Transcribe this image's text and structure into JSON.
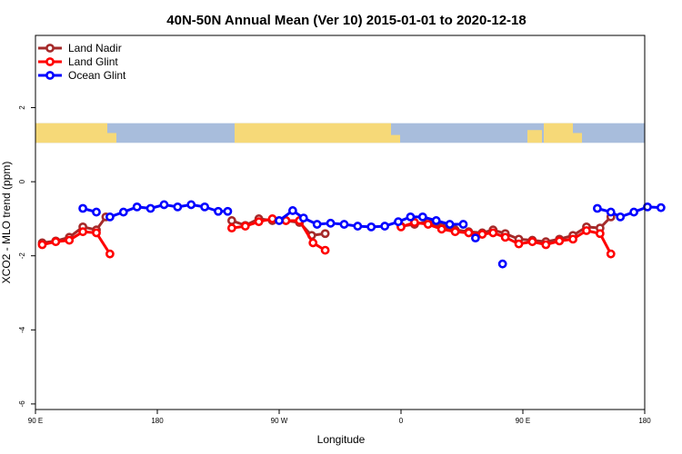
{
  "chart_data": {
    "type": "line",
    "title": "40N-50N Annual Mean (Ver 10)   2015-01-01 to 2020-12-18",
    "xlabel": "Longitude",
    "ylabel": "XCO2 - MLO trend (ppm)",
    "x_ticks": [
      {
        "value": 90,
        "label": "90 E"
      },
      {
        "value": 180,
        "label": "180"
      },
      {
        "value": 270,
        "label": "90 W"
      },
      {
        "value": 360,
        "label": "0"
      },
      {
        "value": 450,
        "label": "90 E"
      },
      {
        "value": 540,
        "label": "180"
      }
    ],
    "y_ticks": [
      {
        "value": 2,
        "label": "2"
      },
      {
        "value": 0,
        "label": "0"
      },
      {
        "value": -2,
        "label": "-2"
      },
      {
        "value": -4,
        "label": "-4"
      },
      {
        "value": -6,
        "label": "-6"
      }
    ],
    "xlim": [
      90,
      540
    ],
    "ylim": [
      -6.15,
      3.95
    ],
    "legend_position": "top-left",
    "map_strip": {
      "y_top": 1.58,
      "y_bottom": 1.05,
      "ocean_color": "#a8bddc",
      "land_color": "#f6d978"
    },
    "series": [
      {
        "name": "Land Nadir",
        "color": "#a52a2a",
        "segments": [
          [
            [
              95,
              -1.65
            ],
            [
              105,
              -1.6
            ],
            [
              115,
              -1.5
            ],
            [
              125,
              -1.22
            ],
            [
              135,
              -1.3
            ],
            [
              142,
              -0.95
            ]
          ],
          [
            [
              235,
              -1.05
            ],
            [
              245,
              -1.18
            ],
            [
              255,
              -1.0
            ],
            [
              265,
              -1.05
            ],
            [
              275,
              -1.05
            ],
            [
              285,
              -1.1
            ],
            [
              294,
              -1.45
            ],
            [
              304,
              -1.4
            ]
          ],
          [
            [
              360,
              -1.2
            ],
            [
              370,
              -1.15
            ],
            [
              380,
              -1.08
            ],
            [
              390,
              -1.22
            ],
            [
              400,
              -1.3
            ],
            [
              410,
              -1.35
            ],
            [
              420,
              -1.38
            ],
            [
              428,
              -1.3
            ],
            [
              437,
              -1.4
            ],
            [
              447,
              -1.55
            ],
            [
              457,
              -1.58
            ],
            [
              467,
              -1.62
            ],
            [
              477,
              -1.55
            ],
            [
              487,
              -1.45
            ],
            [
              497,
              -1.22
            ],
            [
              507,
              -1.25
            ],
            [
              515,
              -0.95
            ]
          ]
        ]
      },
      {
        "name": "Land Glint",
        "color": "#ff0000",
        "segments": [
          [
            [
              95,
              -1.7
            ],
            [
              105,
              -1.62
            ],
            [
              115,
              -1.58
            ],
            [
              125,
              -1.35
            ],
            [
              135,
              -1.38
            ],
            [
              145,
              -1.95
            ]
          ],
          [
            [
              235,
              -1.25
            ],
            [
              245,
              -1.2
            ],
            [
              255,
              -1.08
            ],
            [
              265,
              -1.0
            ],
            [
              275,
              -1.05
            ],
            [
              285,
              -1.05
            ],
            [
              295,
              -1.65
            ],
            [
              304,
              -1.85
            ]
          ],
          [
            [
              360,
              -1.22
            ],
            [
              370,
              -1.1
            ],
            [
              380,
              -1.15
            ],
            [
              390,
              -1.28
            ],
            [
              400,
              -1.35
            ],
            [
              410,
              -1.38
            ],
            [
              420,
              -1.42
            ],
            [
              428,
              -1.38
            ],
            [
              437,
              -1.5
            ],
            [
              447,
              -1.68
            ],
            [
              457,
              -1.62
            ],
            [
              467,
              -1.7
            ],
            [
              477,
              -1.6
            ],
            [
              487,
              -1.55
            ],
            [
              497,
              -1.32
            ],
            [
              507,
              -1.4
            ],
            [
              515,
              -1.95
            ]
          ]
        ]
      },
      {
        "name": "Ocean Glint",
        "color": "#0000ff",
        "segments": [
          [
            [
              125,
              -0.72
            ],
            [
              135,
              -0.82
            ]
          ],
          [
            [
              145,
              -0.95
            ],
            [
              155,
              -0.82
            ],
            [
              165,
              -0.68
            ],
            [
              175,
              -0.72
            ],
            [
              185,
              -0.62
            ],
            [
              195,
              -0.68
            ],
            [
              205,
              -0.62
            ],
            [
              215,
              -0.68
            ],
            [
              225,
              -0.8
            ],
            [
              232,
              -0.8
            ]
          ],
          [
            [
              270,
              -1.05
            ],
            [
              280,
              -0.78
            ],
            [
              288,
              -0.98
            ],
            [
              298,
              -1.15
            ],
            [
              308,
              -1.12
            ],
            [
              318,
              -1.15
            ],
            [
              328,
              -1.2
            ],
            [
              338,
              -1.22
            ],
            [
              348,
              -1.2
            ],
            [
              358,
              -1.08
            ],
            [
              367,
              -0.95
            ],
            [
              376,
              -0.95
            ],
            [
              386,
              -1.05
            ],
            [
              396,
              -1.15
            ],
            [
              406,
              -1.15
            ]
          ],
          [
            [
              415,
              -1.52
            ]
          ],
          [
            [
              435,
              -2.22
            ]
          ],
          [
            [
              505,
              -0.72
            ],
            [
              515,
              -0.82
            ],
            [
              522,
              -0.95
            ],
            [
              532,
              -0.82
            ],
            [
              542,
              -0.68
            ],
            [
              552,
              -0.7
            ]
          ]
        ]
      }
    ]
  }
}
